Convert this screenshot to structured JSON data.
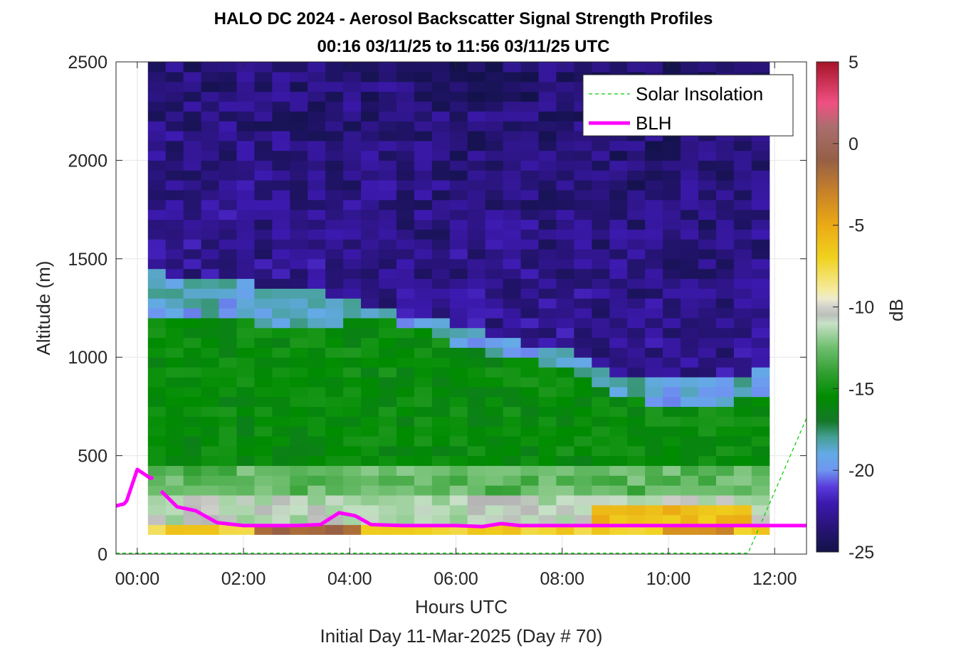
{
  "chart_data": {
    "type": "heatmap",
    "title": "HALO DC 2024 - Aerosol Backscatter Signal Strength Profiles",
    "subtitle": "00:16 03/11/25 to 11:56 03/11/25  UTC",
    "xlabel": "Hours UTC",
    "xlabel2": "Initial Day 11-Mar-2025 (Day # 70)",
    "ylabel": "Altitude (m)",
    "colorbar_label": "dB",
    "xlim": [
      -0.4,
      12.6
    ],
    "ylim": [
      0,
      2500
    ],
    "clim": [
      -25,
      5
    ],
    "x_ticks": [
      "00:00",
      "02:00",
      "04:00",
      "06:00",
      "08:00",
      "10:00",
      "12:00"
    ],
    "x_tick_values": [
      0,
      2,
      4,
      6,
      8,
      10,
      12
    ],
    "y_ticks": [
      "0",
      "500",
      "1000",
      "1500",
      "2000",
      "2500"
    ],
    "y_tick_values": [
      0,
      500,
      1000,
      1500,
      2000,
      2500
    ],
    "colorbar_ticks": [
      "5",
      "0",
      "-5",
      "-10",
      "-15",
      "-20",
      "-25"
    ],
    "colorbar_tick_values": [
      5,
      0,
      -5,
      -10,
      -15,
      -20,
      -25
    ],
    "grid": true,
    "legend_position": "top-right",
    "heatmap": {
      "x_start": 0.2,
      "x_end": 11.9,
      "y_start": 100,
      "y_end": 2500,
      "columns": 35,
      "rows": 48,
      "profile_hours": [
        0.0,
        1.0,
        2.0,
        3.0,
        3.6,
        4.0,
        4.5,
        5.0,
        5.5,
        6.0,
        6.5,
        7.0,
        7.5,
        8.0,
        8.5,
        9.0,
        9.5,
        10.0,
        10.5,
        11.0,
        11.5,
        12.0
      ],
      "aerosol_top_m": [
        1450,
        1400,
        1380,
        1350,
        1330,
        1300,
        1260,
        1220,
        1200,
        1180,
        1130,
        1100,
        1060,
        1040,
        960,
        920,
        900,
        880,
        900,
        900,
        920,
        940
      ],
      "green_top_m": [
        1200,
        1200,
        1180,
        1150,
        1150,
        1180,
        1200,
        1160,
        1120,
        1080,
        1030,
        1000,
        980,
        950,
        860,
        800,
        780,
        760,
        760,
        760,
        780,
        800
      ]
    },
    "series": [
      {
        "name": "Solar Insolation",
        "color": "#00cc00",
        "style": "dashed",
        "x": [
          -0.4,
          11.5,
          12.6
        ],
        "y": [
          5,
          5,
          690
        ]
      },
      {
        "name": "BLH",
        "color": "#ff00ff",
        "style": "solid",
        "segments": [
          {
            "x": [
              -0.4,
              -0.25,
              -0.2,
              0.0,
              0.25,
              0.3
            ],
            "y": [
              245,
              255,
              270,
              430,
              385,
              390
            ]
          },
          {
            "x": [
              0.45,
              0.75,
              1.1,
              1.5,
              2.0,
              3.0,
              3.45,
              3.8,
              4.1,
              4.4,
              5.0,
              6.0,
              6.5,
              6.85,
              7.2,
              8.0,
              9.0,
              10.0,
              11.0,
              12.0,
              12.6
            ],
            "y": [
              320,
              240,
              220,
              160,
              145,
              145,
              150,
              210,
              195,
              150,
              145,
              145,
              140,
              155,
              145,
              145,
              145,
              145,
              145,
              145,
              145
            ]
          }
        ]
      }
    ]
  }
}
